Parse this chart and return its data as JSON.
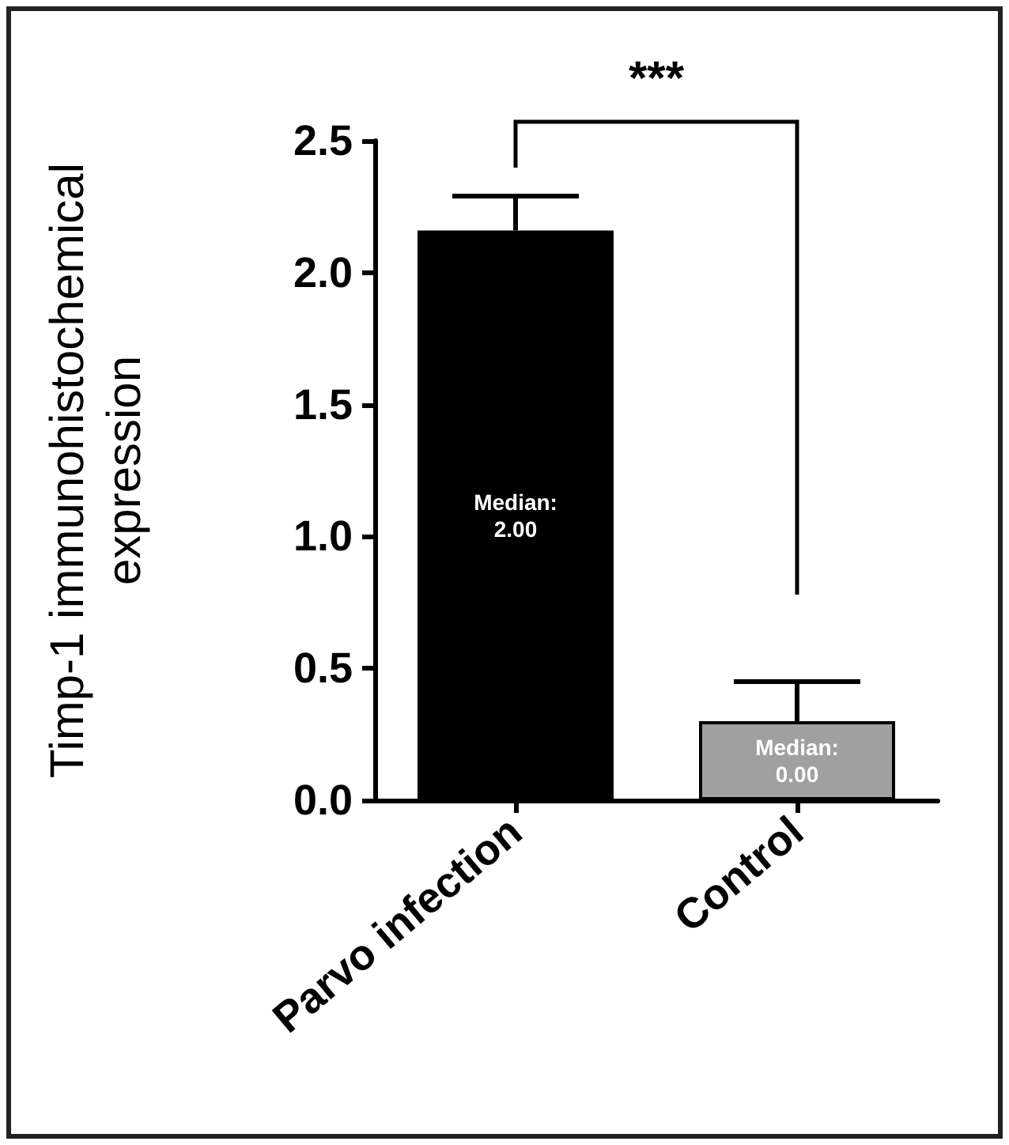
{
  "chart_data": {
    "type": "bar",
    "ylabel": "Timp-1 immunohistochemical\nexpression",
    "categories": [
      "Parvo infection",
      "Control"
    ],
    "values": [
      2.16,
      0.3
    ],
    "colors": [
      "#000000",
      "#a0a0a0"
    ],
    "errors": [
      [
        2.16,
        2.29
      ],
      [
        0.3,
        0.45
      ]
    ],
    "ylim": [
      0,
      2.5
    ],
    "yticks": [
      {
        "value": 0,
        "label": "0.0"
      },
      0.5,
      {
        "value": 1,
        "label": "1.0"
      },
      1.5,
      {
        "value": 2,
        "label": "2.0"
      },
      2.5
    ],
    "annotations": [
      "Median:\n2.00",
      "Median:\n0.00",
      "***"
    ],
    "grid": false
  }
}
